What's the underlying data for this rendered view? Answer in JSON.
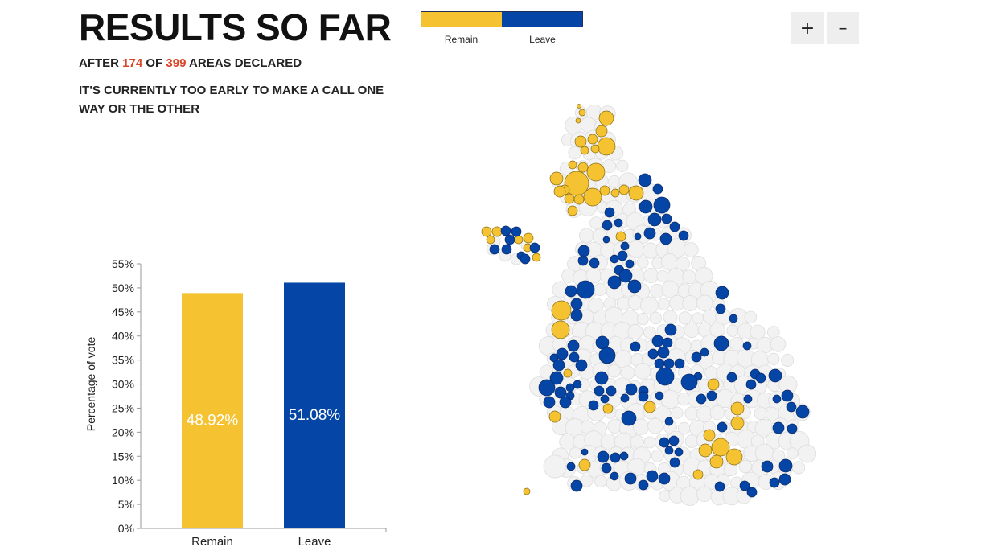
{
  "header": {
    "title": "RESULTS SO FAR",
    "subtitle_prefix": "AFTER",
    "declared": "174",
    "subtitle_mid": "OF",
    "total": "399",
    "subtitle_suffix": "AREAS DECLARED",
    "status": "IT'S CURRENTLY TOO EARLY TO MAKE A CALL ONE WAY OR THE OTHER"
  },
  "legend": {
    "remain_label": "Remain",
    "leave_label": "Leave",
    "remain_color": "#f5c331",
    "leave_color": "#0545a6"
  },
  "zoom": {
    "in_label": "+",
    "out_label": "–"
  },
  "chart_data": {
    "type": "bar",
    "categories": [
      "Remain",
      "Leave"
    ],
    "values": [
      48.92,
      51.08
    ],
    "value_labels": [
      "48.92%",
      "51.08%"
    ],
    "colors": [
      "#f5c331",
      "#0545a6"
    ],
    "ylabel": "Percentage of vote",
    "ylim": [
      0,
      55
    ],
    "yticks": [
      "0%",
      "5%",
      "10%",
      "15%",
      "20%",
      "25%",
      "30%",
      "35%",
      "40%",
      "45%",
      "50%",
      "55%"
    ]
  }
}
